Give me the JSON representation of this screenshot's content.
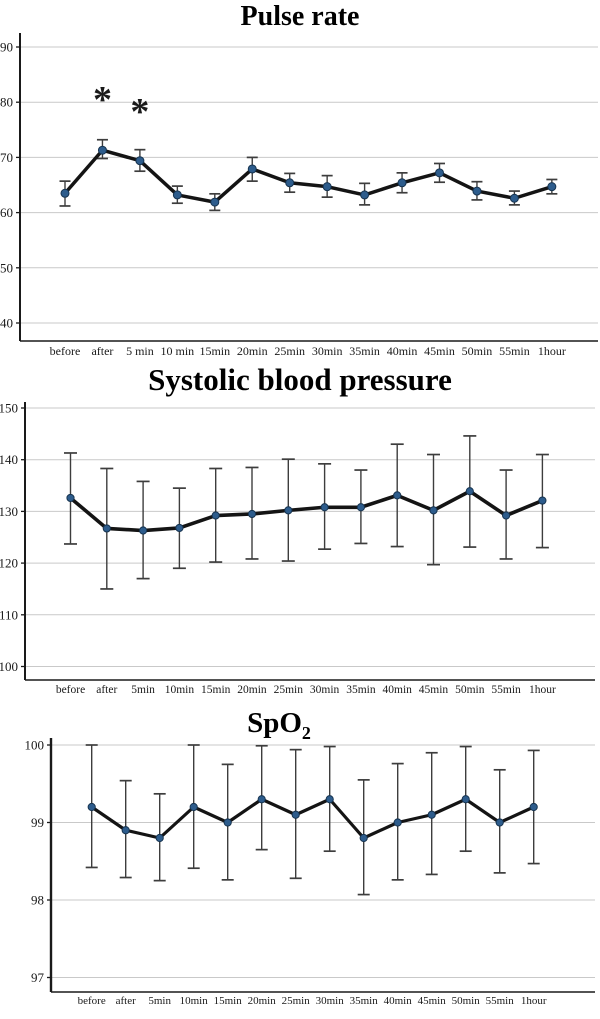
{
  "palette": {
    "line": "#141414",
    "marker_fill": "#2d5c8c",
    "marker_stroke": "#16334f",
    "error_bar": "#3d3d3d",
    "gridline": "#c9c9c9",
    "axis": "#1a1a1a",
    "annotation_red": "#e60000",
    "background": "#ffffff",
    "title_color": "#000000"
  },
  "chart_data": [
    {
      "type": "line",
      "title": "Pulse rate",
      "title_sub": "",
      "categories": [
        "before",
        "after",
        "5 min",
        "10 min",
        "15min",
        "20min",
        "25min",
        "30min",
        "35min",
        "40min",
        "45min",
        "50min",
        "55min",
        "1hour"
      ],
      "values": [
        63.5,
        71.3,
        69.4,
        63.2,
        61.9,
        67.9,
        65.4,
        64.7,
        63.2,
        65.4,
        67.2,
        63.9,
        62.6,
        64.7
      ],
      "err_low": [
        61.2,
        69.8,
        67.5,
        61.7,
        60.4,
        65.7,
        63.7,
        62.8,
        61.4,
        63.6,
        65.5,
        62.3,
        61.4,
        63.4
      ],
      "err_high": [
        65.7,
        73.2,
        71.4,
        64.8,
        63.4,
        70.0,
        67.1,
        66.7,
        65.3,
        67.2,
        68.9,
        65.6,
        63.9,
        66.0
      ],
      "yticks": [
        40,
        50,
        60,
        70,
        80,
        90
      ],
      "ylim": [
        36.7,
        92.5
      ],
      "xlabel": "",
      "ylabel": "",
      "grid": "horizontal",
      "legend": "none",
      "error_bars": true,
      "annotations": [
        {
          "index": 1,
          "value": 81.5,
          "symbol": "*"
        },
        {
          "index": 2,
          "value": 79.3,
          "symbol": "*"
        }
      ]
    },
    {
      "type": "line",
      "title": "Systolic blood pressure",
      "title_sub": "",
      "categories": [
        "before",
        "after",
        "5min",
        "10min",
        "15min",
        "20min",
        "25min",
        "30min",
        "35min",
        "40min",
        "45min",
        "50min",
        "55min",
        "1hour"
      ],
      "values": [
        132.6,
        126.7,
        126.3,
        126.8,
        129.2,
        129.5,
        130.2,
        130.8,
        130.8,
        133.1,
        130.2,
        133.9,
        129.2,
        132.1
      ],
      "err_low": [
        123.7,
        115.0,
        117.0,
        119.0,
        120.2,
        120.8,
        120.4,
        122.7,
        123.8,
        123.2,
        119.7,
        123.1,
        120.8,
        123.0
      ],
      "err_high": [
        141.3,
        138.3,
        135.8,
        134.5,
        138.3,
        138.5,
        140.1,
        139.2,
        138.0,
        143.0,
        141.0,
        144.6,
        138.0,
        141.0
      ],
      "yticks": [
        100,
        110,
        120,
        130,
        140,
        150
      ],
      "ylim": [
        97.7,
        151.2
      ],
      "xlabel": "",
      "ylabel": "",
      "grid": "horizontal",
      "legend": "none",
      "error_bars": true,
      "annotations": []
    },
    {
      "type": "line",
      "title": "SpO",
      "title_sub": "2",
      "categories": [
        "before",
        "after",
        "5min",
        "10min",
        "15min",
        "20min",
        "25min",
        "30min",
        "35min",
        "40min",
        "45min",
        "50min",
        "55min",
        "1hour"
      ],
      "values": [
        99.2,
        98.9,
        98.8,
        99.2,
        99.0,
        99.3,
        99.1,
        99.3,
        98.8,
        99.0,
        99.1,
        99.3,
        99.0,
        99.2
      ],
      "err_low": [
        98.42,
        98.29,
        98.25,
        98.41,
        98.26,
        98.65,
        98.28,
        98.63,
        98.07,
        98.26,
        98.33,
        98.63,
        98.35,
        98.47
      ],
      "err_high": [
        100.0,
        99.54,
        99.37,
        100.0,
        99.75,
        99.99,
        99.94,
        99.98,
        99.55,
        99.76,
        99.9,
        99.98,
        99.68,
        99.93
      ],
      "yticks": [
        97,
        98,
        99,
        100
      ],
      "ylim": [
        96.8,
        100.1
      ],
      "xlabel": "",
      "ylabel": "",
      "grid": "horizontal",
      "legend": "none",
      "error_bars": true,
      "annotations": []
    }
  ]
}
